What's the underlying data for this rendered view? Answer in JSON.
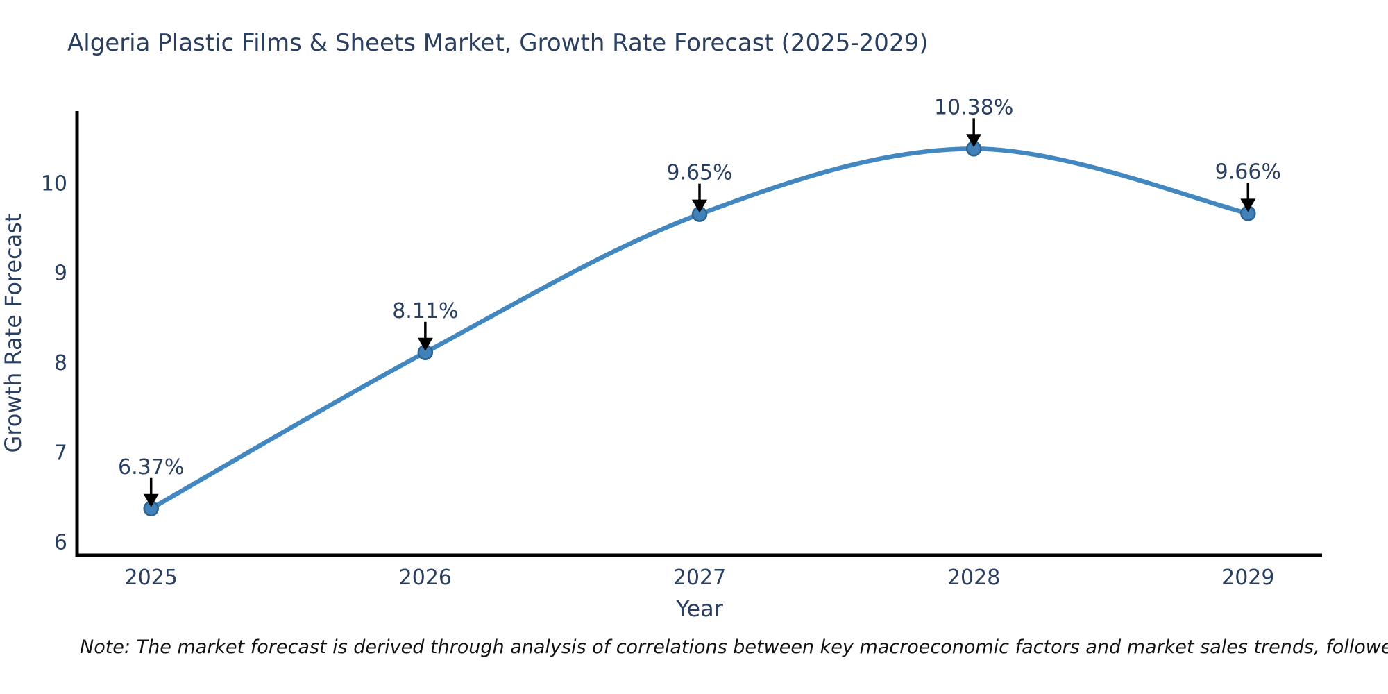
{
  "title": "Algeria Plastic Films & Sheets Market, Growth Rate Forecast (2025-2029)",
  "note": "Note: The market forecast is derived through analysis of correlations between key macroeconomic factors and market sales trends, followed by predictive modeling to project future sales.",
  "chart_data": {
    "type": "line",
    "line_shape": "spline",
    "title": "Algeria Plastic Films & Sheets Market, Growth Rate Forecast (2025-2029)",
    "xlabel": "Year",
    "ylabel": "Growth Rate Forecast",
    "x": [
      2025,
      2026,
      2027,
      2028,
      2029
    ],
    "y": [
      6.37,
      8.11,
      9.65,
      10.38,
      9.66
    ],
    "point_labels": [
      "6.37%",
      "8.11%",
      "9.65%",
      "10.38%",
      "9.66%"
    ],
    "x_tick_labels": [
      "2025",
      "2026",
      "2027",
      "2028",
      "2029"
    ],
    "y_tick_values": [
      6,
      7,
      8,
      9,
      10
    ],
    "xlim": [
      2024.73,
      2029.27
    ],
    "ylim": [
      5.85,
      10.8
    ],
    "grid": false,
    "legend_position": "none",
    "colors": {
      "line": "#4287c0",
      "marker_fill": "#4181ba",
      "marker_edge": "#2f648f",
      "axis_line": "#000000",
      "tick_text": "#2a3f5f",
      "axis_title_text": "#2a3f5f",
      "annotation_text": "#2a3f5f",
      "annotation_arrow": "#000000",
      "title_text": "#2a3f5f",
      "background": "#ffffff"
    }
  }
}
